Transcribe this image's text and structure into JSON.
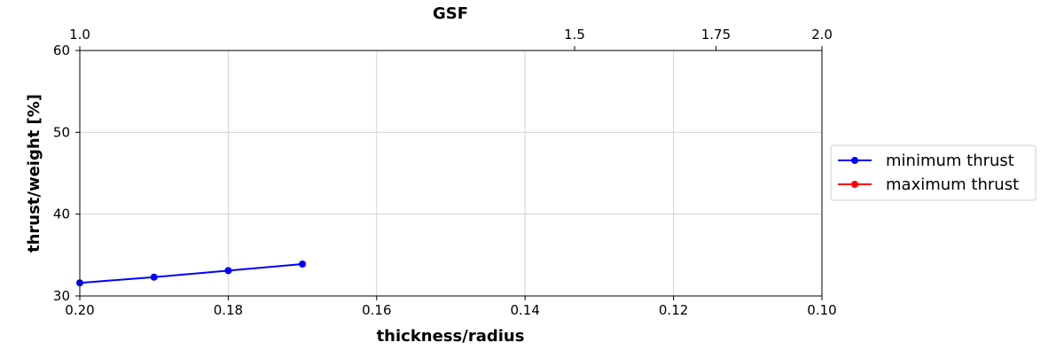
{
  "chart_data": {
    "type": "line",
    "title": "",
    "xlabel": "thickness/radius",
    "ylabel": "thrust/weight [%]",
    "x_axis_reversed": true,
    "xlim": [
      0.2,
      0.1
    ],
    "ylim": [
      30,
      60
    ],
    "x_ticks": [
      0.2,
      0.18,
      0.16,
      0.14,
      0.12,
      0.1
    ],
    "x_tick_labels": [
      "0.20",
      "0.18",
      "0.16",
      "0.14",
      "0.12",
      "0.10"
    ],
    "y_ticks": [
      30,
      40,
      50,
      60
    ],
    "y_tick_labels": [
      "30",
      "40",
      "50",
      "60"
    ],
    "secondary_x_axis": {
      "label": "GSF",
      "position": "top",
      "relation": "GSF = 0.2 / (thickness/radius)",
      "ticks": [
        1.0,
        1.5,
        1.75,
        2.0
      ],
      "tick_labels": [
        "1.0",
        "1.5",
        "1.75",
        "2.0"
      ]
    },
    "grid": true,
    "legend_position": "right-outside",
    "series": [
      {
        "name": "minimum thrust",
        "color": "#0000ff",
        "marker": "circle",
        "x": [
          0.2,
          0.19,
          0.18,
          0.17
        ],
        "y": [
          31.6,
          32.3,
          33.1,
          33.9
        ]
      },
      {
        "name": "maximum thrust",
        "color": "#ff0000",
        "marker": "circle",
        "x": [],
        "y": []
      }
    ]
  }
}
